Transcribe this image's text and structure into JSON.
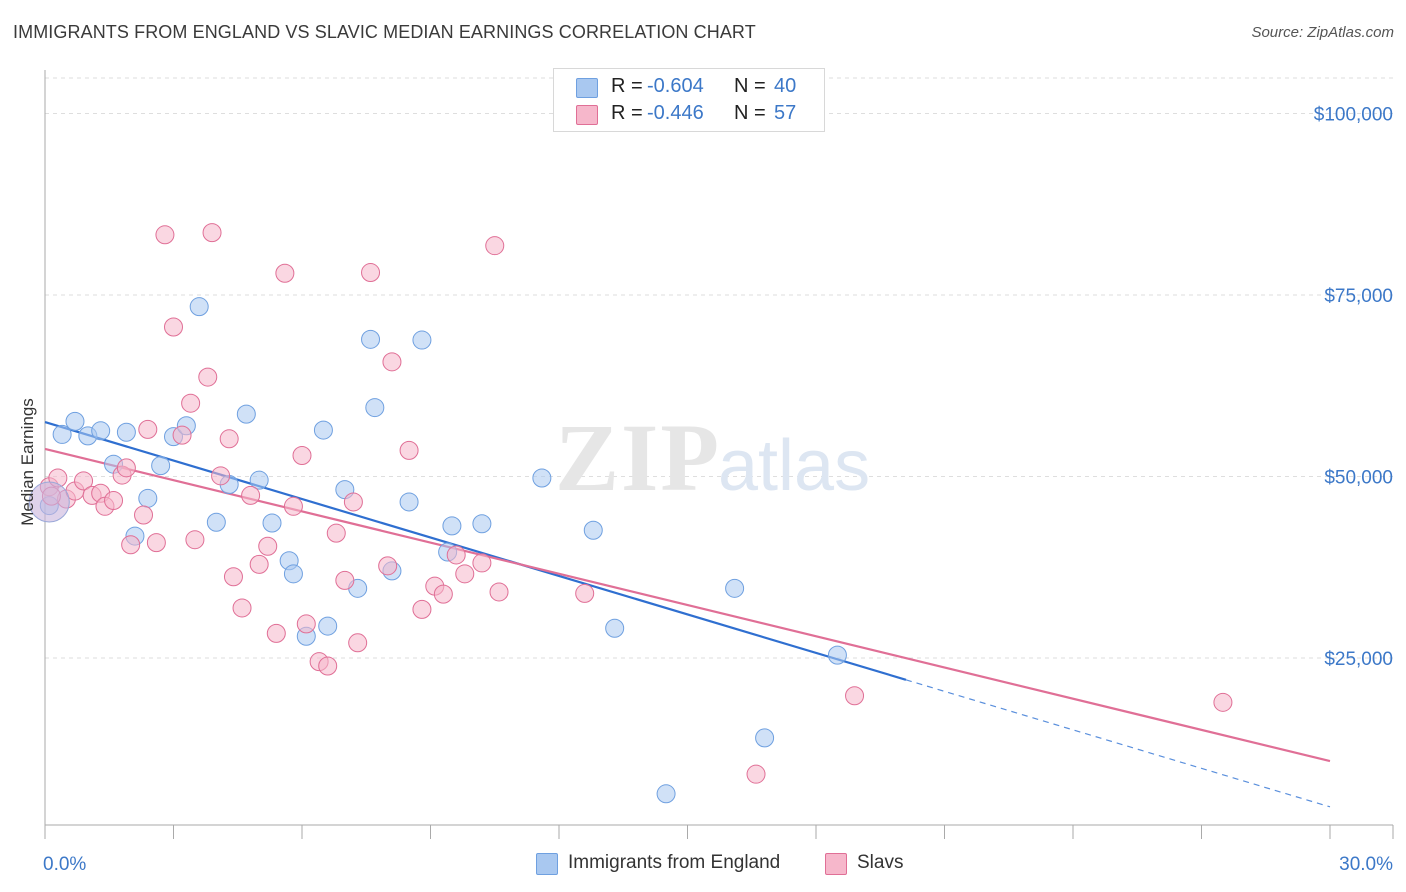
{
  "header": {
    "title": "IMMIGRANTS FROM ENGLAND VS SLAVIC MEDIAN EARNINGS CORRELATION CHART",
    "source": "Source: ZipAtlas.com"
  },
  "watermark": {
    "part1": "ZIP",
    "part2": "atlas"
  },
  "legend": {
    "rows": [
      {
        "r_label": "R =",
        "r_value": "-0.604",
        "n_label": "N =",
        "n_value": "40",
        "color": "#a9c8f0"
      },
      {
        "r_label": "R =",
        "r_value": "-0.446",
        "n_label": "N =",
        "n_value": "57",
        "color": "#f6b7cb"
      }
    ]
  },
  "bottom_legend": {
    "items": [
      {
        "label": "Immigrants from England",
        "color": "#a9c8f0"
      },
      {
        "label": "Slavs",
        "color": "#f6b7cb"
      }
    ]
  },
  "chart_data": {
    "type": "scatter",
    "title": "IMMIGRANTS FROM ENGLAND VS SLAVIC MEDIAN EARNINGS CORRELATION CHART",
    "xlabel": "",
    "ylabel": "Median Earnings",
    "xlim": [
      0,
      30
    ],
    "ylim": [
      2000,
      106000
    ],
    "x_tick_labels": [
      "0.0%",
      "30.0%"
    ],
    "y_ticks": [
      25000,
      50000,
      75000,
      100000
    ],
    "y_tick_labels": [
      "$25,000",
      "$50,000",
      "$75,000",
      "$100,000"
    ],
    "grid": true,
    "legend_position": "top-center",
    "series": [
      {
        "name": "Immigrants from England",
        "color": "#6fa0e0",
        "fill": "#a9c8f0",
        "trend": {
          "x": [
            0,
            20.1
          ],
          "y": [
            57500,
            22000
          ],
          "dashed_to": [
            30,
            4500
          ]
        },
        "points": [
          [
            0.1,
            46000
          ],
          [
            0.4,
            55800
          ],
          [
            0.7,
            57600
          ],
          [
            1.0,
            55600
          ],
          [
            1.3,
            56300
          ],
          [
            1.6,
            51700
          ],
          [
            1.9,
            56100
          ],
          [
            2.1,
            41800
          ],
          [
            2.4,
            47000
          ],
          [
            2.7,
            51500
          ],
          [
            3.0,
            55500
          ],
          [
            3.3,
            57000
          ],
          [
            3.6,
            73400
          ],
          [
            4.0,
            43700
          ],
          [
            4.3,
            48900
          ],
          [
            4.7,
            58600
          ],
          [
            5.0,
            49500
          ],
          [
            5.3,
            43600
          ],
          [
            5.7,
            38400
          ],
          [
            5.8,
            36600
          ],
          [
            6.1,
            28000
          ],
          [
            6.5,
            56400
          ],
          [
            6.6,
            29400
          ],
          [
            7.0,
            48200
          ],
          [
            7.3,
            34600
          ],
          [
            7.6,
            68900
          ],
          [
            7.7,
            59500
          ],
          [
            8.1,
            37000
          ],
          [
            8.5,
            46500
          ],
          [
            8.8,
            68800
          ],
          [
            9.4,
            39600
          ],
          [
            9.5,
            43200
          ],
          [
            10.2,
            43500
          ],
          [
            11.6,
            49800
          ],
          [
            12.8,
            42600
          ],
          [
            13.3,
            29100
          ],
          [
            14.5,
            6300
          ],
          [
            16.1,
            34600
          ],
          [
            16.8,
            14000
          ],
          [
            18.5,
            25400
          ]
        ]
      },
      {
        "name": "Slavs",
        "color": "#e06f96",
        "fill": "#f6b7cb",
        "trend": {
          "x": [
            0,
            30
          ],
          "y": [
            53800,
            10800
          ]
        },
        "points": [
          [
            0.1,
            48600
          ],
          [
            0.3,
            49800
          ],
          [
            0.5,
            46900
          ],
          [
            0.7,
            48000
          ],
          [
            0.9,
            49400
          ],
          [
            1.1,
            47400
          ],
          [
            1.3,
            47700
          ],
          [
            1.4,
            45900
          ],
          [
            1.6,
            46700
          ],
          [
            1.8,
            50200
          ],
          [
            1.9,
            51200
          ],
          [
            2.0,
            40600
          ],
          [
            2.3,
            44700
          ],
          [
            2.4,
            56500
          ],
          [
            2.6,
            40900
          ],
          [
            2.8,
            83300
          ],
          [
            3.0,
            70600
          ],
          [
            3.2,
            55700
          ],
          [
            3.4,
            60100
          ],
          [
            3.5,
            41300
          ],
          [
            3.8,
            63700
          ],
          [
            3.9,
            83600
          ],
          [
            4.1,
            50100
          ],
          [
            4.3,
            55200
          ],
          [
            4.4,
            36200
          ],
          [
            4.6,
            31900
          ],
          [
            4.8,
            47400
          ],
          [
            5.0,
            37900
          ],
          [
            5.2,
            40400
          ],
          [
            5.4,
            28400
          ],
          [
            5.6,
            78000
          ],
          [
            5.8,
            45900
          ],
          [
            6.0,
            52900
          ],
          [
            6.1,
            29700
          ],
          [
            6.4,
            24500
          ],
          [
            6.6,
            23900
          ],
          [
            6.8,
            42200
          ],
          [
            7.0,
            35700
          ],
          [
            7.2,
            46500
          ],
          [
            7.3,
            27100
          ],
          [
            7.6,
            78100
          ],
          [
            8.0,
            37700
          ],
          [
            8.1,
            65800
          ],
          [
            8.5,
            53600
          ],
          [
            8.8,
            31700
          ],
          [
            9.1,
            34900
          ],
          [
            9.3,
            33800
          ],
          [
            9.6,
            39200
          ],
          [
            9.8,
            36600
          ],
          [
            10.2,
            38100
          ],
          [
            10.5,
            81800
          ],
          [
            10.6,
            34100
          ],
          [
            12.6,
            33900
          ],
          [
            16.6,
            9000
          ],
          [
            18.9,
            19800
          ],
          [
            27.5,
            18900
          ],
          [
            0.15,
            47300
          ]
        ]
      }
    ]
  }
}
